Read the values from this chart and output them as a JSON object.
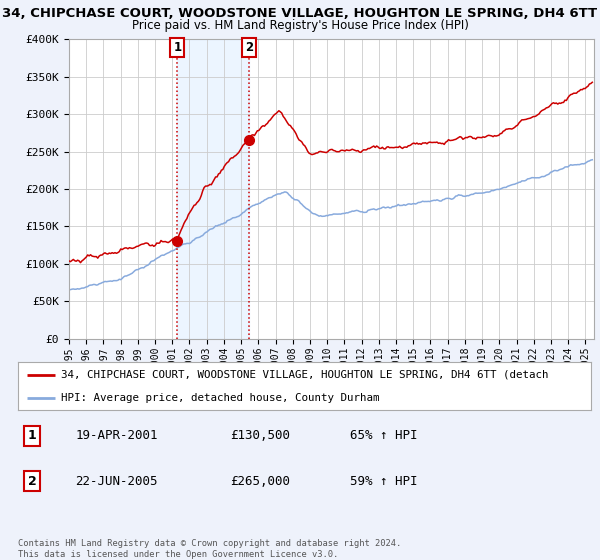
{
  "title": "34, CHIPCHASE COURT, WOODSTONE VILLAGE, HOUGHTON LE SPRING, DH4 6TT",
  "subtitle": "Price paid vs. HM Land Registry's House Price Index (HPI)",
  "ylim": [
    0,
    400000
  ],
  "yticks": [
    0,
    50000,
    100000,
    150000,
    200000,
    250000,
    300000,
    350000,
    400000
  ],
  "ytick_labels": [
    "£0",
    "£50K",
    "£100K",
    "£150K",
    "£200K",
    "£250K",
    "£300K",
    "£350K",
    "£400K"
  ],
  "xlim_start": 1995.0,
  "xlim_end": 2025.5,
  "background_color": "#eef2fb",
  "plot_bg_color": "#ffffff",
  "red_line_color": "#cc0000",
  "blue_line_color": "#88aadd",
  "transaction1_year": 2001.3,
  "transaction1_price": 130500,
  "transaction1_label": "1",
  "transaction2_year": 2005.47,
  "transaction2_price": 265000,
  "transaction2_label": "2",
  "vline_color": "#cc0000",
  "shaded_color": "#ddeeff",
  "shaded_alpha": 0.55,
  "legend_label_red": "34, CHIPCHASE COURT, WOODSTONE VILLAGE, HOUGHTON LE SPRING, DH4 6TT (detach",
  "legend_label_blue": "HPI: Average price, detached house, County Durham",
  "table_rows": [
    {
      "num": "1",
      "date": "19-APR-2001",
      "price": "£130,500",
      "hpi": "65% ↑ HPI"
    },
    {
      "num": "2",
      "date": "22-JUN-2005",
      "price": "£265,000",
      "hpi": "59% ↑ HPI"
    }
  ],
  "footer": "Contains HM Land Registry data © Crown copyright and database right 2024.\nThis data is licensed under the Open Government Licence v3.0."
}
